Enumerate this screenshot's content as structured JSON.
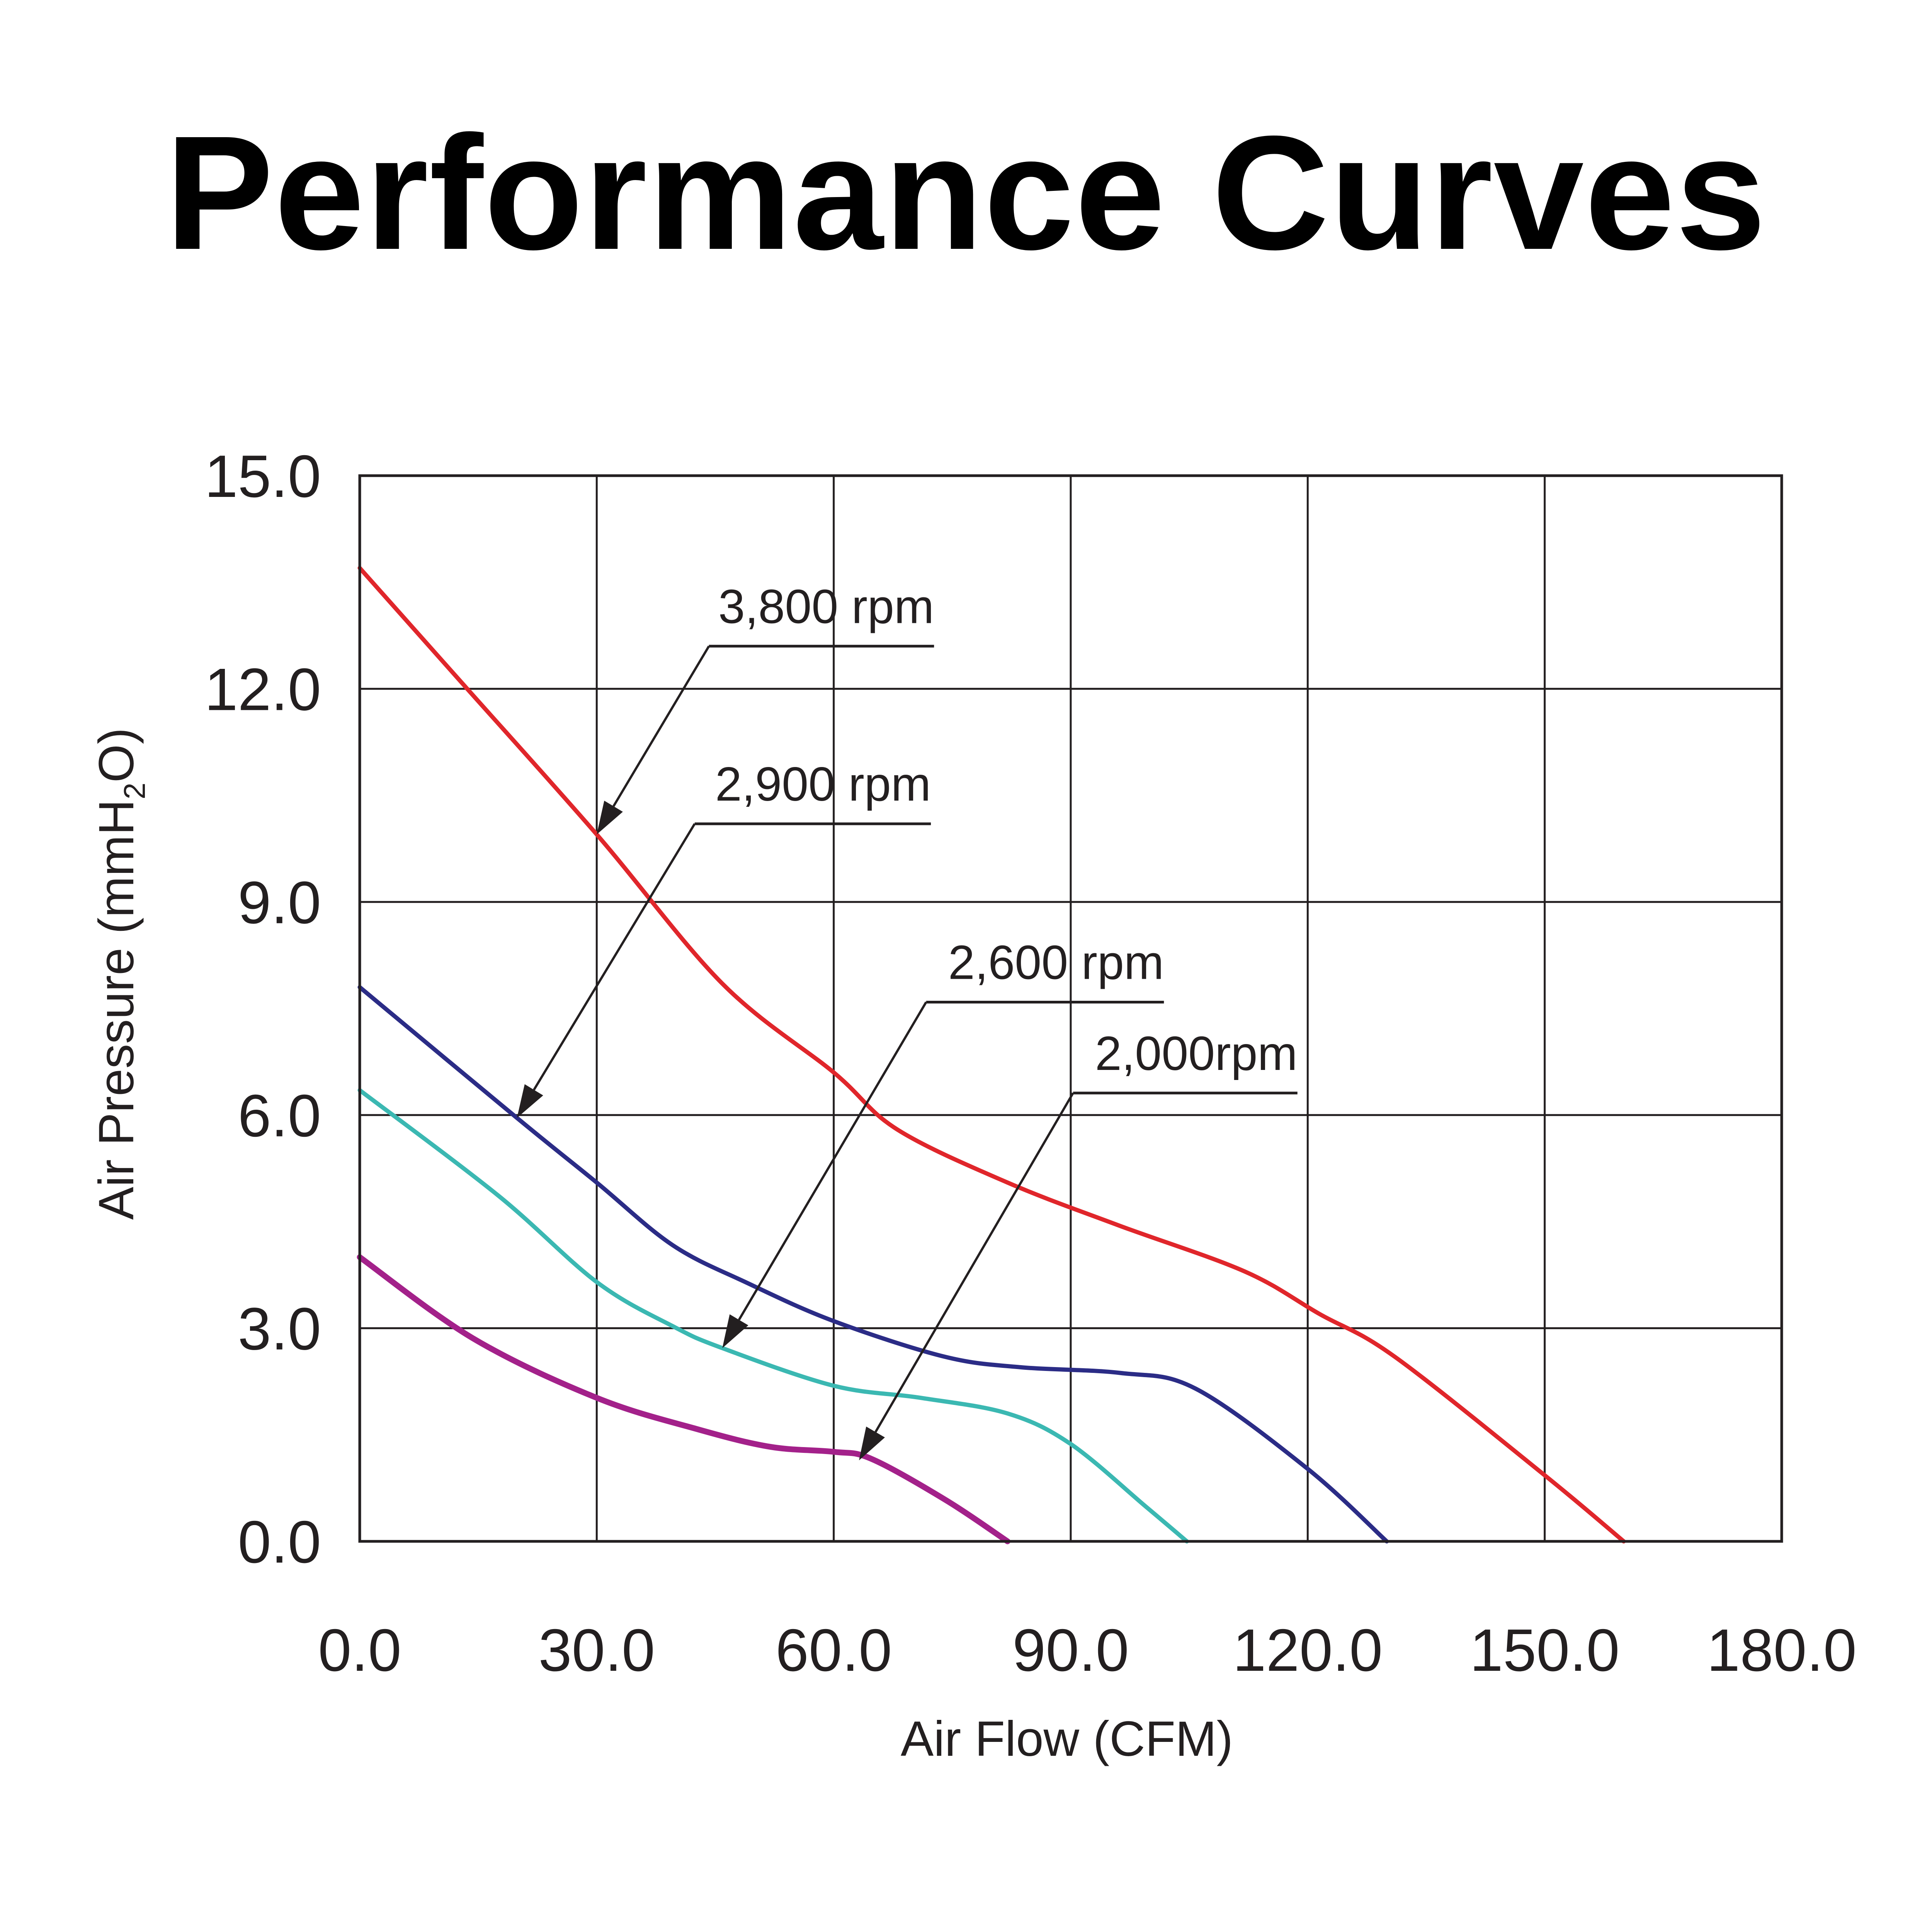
{
  "chart_data": {
    "type": "line",
    "title": "Performance Curves",
    "xlabel": "Air Flow (CFM)",
    "ylabel_main": "Air Pressure (mmH",
    "ylabel_sub": "2",
    "ylabel_end": "O)",
    "xlim": [
      0,
      180
    ],
    "ylim": [
      0,
      15
    ],
    "grid": true,
    "xticks": [
      0,
      30,
      60,
      90,
      120,
      150,
      180
    ],
    "xtick_labels": [
      "0.0",
      "30.0",
      "60.0",
      "90.0",
      "120.0",
      "150.0",
      "180.0"
    ],
    "yticks": [
      0,
      3,
      6,
      9,
      12,
      15
    ],
    "ytick_labels": [
      "0.0",
      "3.0",
      "6.0",
      "9.0",
      "12.0",
      "15.0"
    ],
    "series": [
      {
        "name": "3,800 rpm",
        "color": "#e0262b",
        "x": [
          0,
          12.8,
          30,
          45.9,
          60,
          68,
          82,
          96,
          112,
          121.5,
          131,
          150,
          160
        ],
        "y": [
          13.7,
          12.1,
          9.95,
          7.85,
          6.6,
          5.8,
          5.05,
          4.45,
          3.8,
          3.2,
          2.6,
          0.93,
          0
        ]
      },
      {
        "name": "2,900 rpm",
        "color": "#2b2c86",
        "x": [
          0,
          19.9,
          30,
          39.6,
          49,
          60,
          74,
          83.7,
          96.3,
          105.8,
          120,
          130
        ],
        "y": [
          7.8,
          5.96,
          5.05,
          4.17,
          3.64,
          3.1,
          2.6,
          2.45,
          2.37,
          2.15,
          1.02,
          0
        ]
      },
      {
        "name": "2,600 rpm",
        "color": "#3bb8b2",
        "x": [
          0,
          17.5,
          30,
          39.6,
          45.9,
          60,
          71,
          82,
          90,
          99.5,
          104.7
        ],
        "y": [
          6.35,
          4.87,
          3.65,
          3.03,
          2.72,
          2.19,
          2.02,
          1.8,
          1.37,
          0.49,
          0
        ]
      },
      {
        "name": "2,000rpm",
        "color": "#a3218a",
        "x": [
          0,
          14.3,
          30,
          42.7,
          52,
          60,
          64.8,
          74.2,
          82
        ],
        "y": [
          4.0,
          2.86,
          2.02,
          1.58,
          1.33,
          1.26,
          1.16,
          0.58,
          0
        ]
      }
    ],
    "annotations": [
      {
        "text": "3,800 rpm",
        "series": "3,800 rpm",
        "shelf_x": [
          44.2,
          72.7
        ],
        "shelf_y": 12.6,
        "point": [
          30,
          9.95
        ]
      },
      {
        "text": "2,900 rpm",
        "series": "2,900 rpm",
        "shelf_x": [
          42.4,
          72.3
        ],
        "shelf_y": 10.1,
        "point": [
          19.9,
          5.96
        ]
      },
      {
        "text": "2,600 rpm",
        "series": "2,600 rpm",
        "shelf_x": [
          71.7,
          101.8
        ],
        "shelf_y": 7.59,
        "point": [
          45.9,
          2.72
        ]
      },
      {
        "text": "2,000rpm",
        "series": "2,000rpm",
        "shelf_x": [
          90.3,
          118.7
        ],
        "shelf_y": 6.31,
        "point": [
          63.2,
          1.14
        ]
      }
    ],
    "legend": "none"
  }
}
